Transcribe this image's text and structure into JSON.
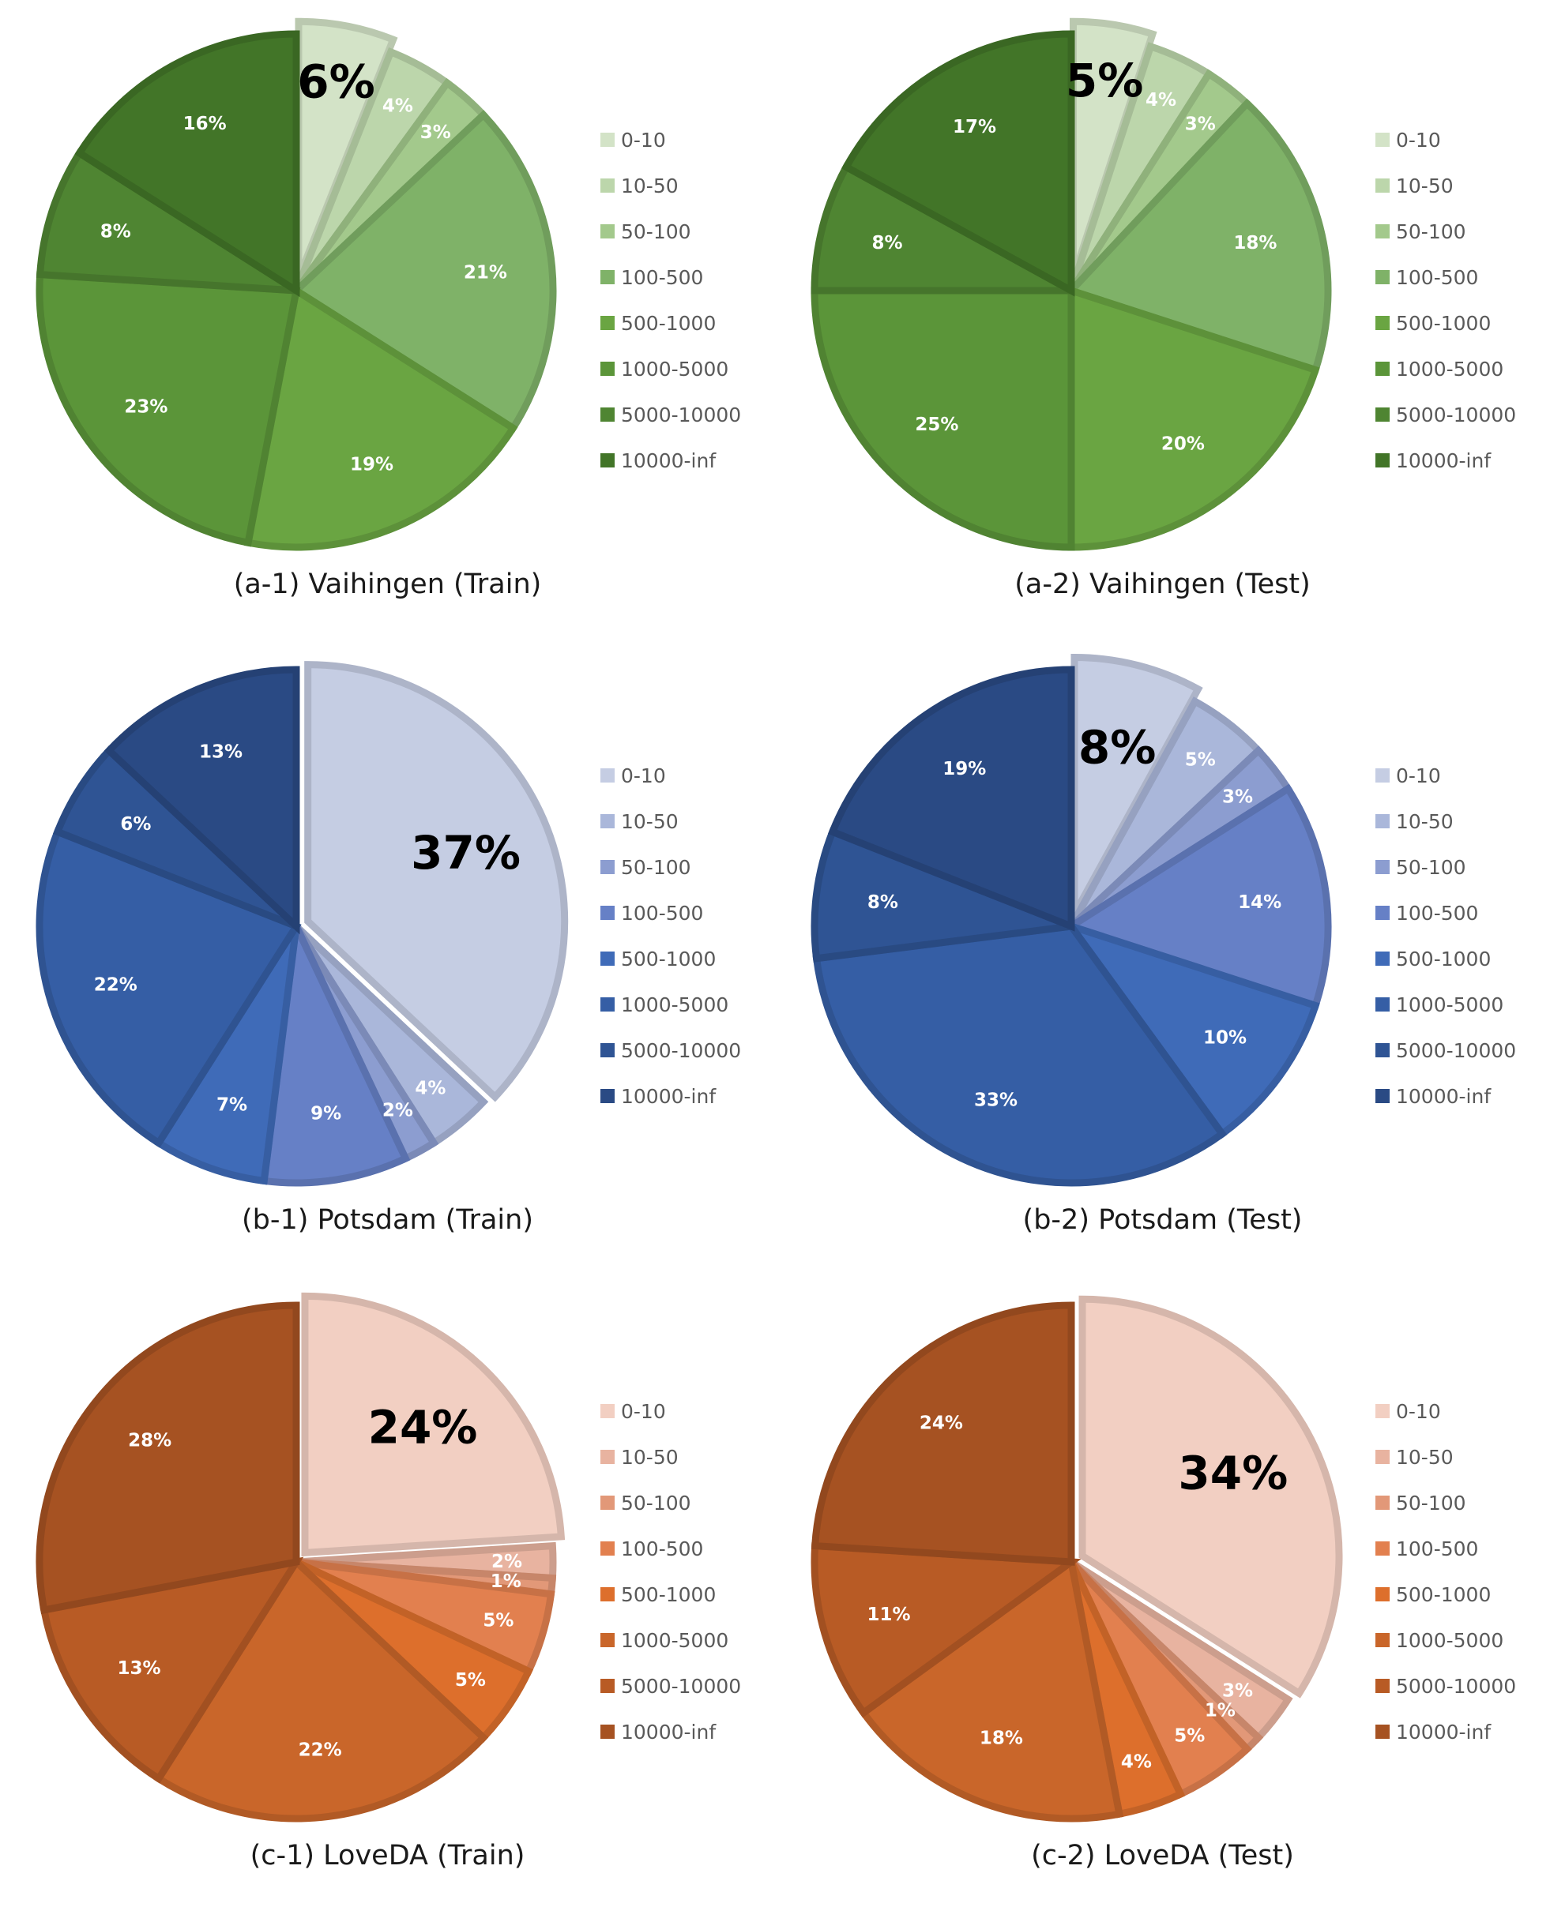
{
  "legend_categories": [
    "0-10",
    "10-50",
    "50-100",
    "100-500",
    "500-1000",
    "1000-5000",
    "5000-10000",
    "10000-inf"
  ],
  "chart_data": [
    {
      "type": "pie",
      "title": "(a-1) Vaihingen (Train)",
      "categories": [
        "0-10",
        "10-50",
        "50-100",
        "100-500",
        "500-1000",
        "1000-5000",
        "5000-10000",
        "10000-inf"
      ],
      "values": [
        6,
        4,
        3,
        21,
        19,
        23,
        8,
        16
      ],
      "labels": [
        "6%",
        "4%",
        "3%",
        "21%",
        "19%",
        "23%",
        "8%",
        "16%"
      ],
      "colors": [
        "#d3e3c7",
        "#bcd6ab",
        "#a3c98c",
        "#7fb268",
        "#6aa542",
        "#5b9539",
        "#4f8532",
        "#427528"
      ],
      "exploded_index": 0,
      "emphasized_index": 0,
      "legend_position": "right"
    },
    {
      "type": "pie",
      "title": "(a-2) Vaihingen (Test)",
      "categories": [
        "0-10",
        "10-50",
        "50-100",
        "100-500",
        "500-1000",
        "1000-5000",
        "5000-10000",
        "10000-inf"
      ],
      "values": [
        5,
        4,
        3,
        18,
        20,
        25,
        8,
        17
      ],
      "labels": [
        "5%",
        "4%",
        "3%",
        "18%",
        "20%",
        "25%",
        "8%",
        "17%"
      ],
      "colors": [
        "#d3e3c7",
        "#bcd6ab",
        "#a3c98c",
        "#7fb268",
        "#6aa542",
        "#5b9539",
        "#4f8532",
        "#427528"
      ],
      "exploded_index": 0,
      "emphasized_index": 0,
      "legend_position": "right"
    },
    {
      "type": "pie",
      "title": "(b-1) Potsdam (Train)",
      "categories": [
        "0-10",
        "10-50",
        "50-100",
        "100-500",
        "500-1000",
        "1000-5000",
        "5000-10000",
        "10000-inf"
      ],
      "values": [
        37,
        4,
        2,
        9,
        7,
        22,
        6,
        13
      ],
      "labels": [
        "37%",
        "4%",
        "2%",
        "9%",
        "7%",
        "22%",
        "6%",
        "13%"
      ],
      "colors": [
        "#c5cde3",
        "#aab7da",
        "#8c9dd0",
        "#6680c6",
        "#3f6bb8",
        "#355ea5",
        "#2f5494",
        "#2a4a84"
      ],
      "exploded_index": 0,
      "emphasized_index": 0,
      "legend_position": "right"
    },
    {
      "type": "pie",
      "title": "(b-2) Potsdam (Test)",
      "categories": [
        "0-10",
        "10-50",
        "50-100",
        "100-500",
        "500-1000",
        "1000-5000",
        "5000-10000",
        "10000-inf"
      ],
      "values": [
        8,
        5,
        3,
        14,
        10,
        33,
        8,
        19
      ],
      "labels": [
        "8%",
        "5%",
        "3%",
        "14%",
        "10%",
        "33%",
        "8%",
        "19%"
      ],
      "colors": [
        "#c5cde3",
        "#aab7da",
        "#8c9dd0",
        "#6680c6",
        "#3f6bb8",
        "#355ea5",
        "#2f5494",
        "#2a4a84"
      ],
      "exploded_index": 0,
      "emphasized_index": 0,
      "legend_position": "right"
    },
    {
      "type": "pie",
      "title": "(c-1) LoveDA (Train)",
      "categories": [
        "0-10",
        "10-50",
        "50-100",
        "100-500",
        "500-1000",
        "1000-5000",
        "5000-10000",
        "10000-inf"
      ],
      "values": [
        24,
        2,
        1,
        5,
        5,
        22,
        13,
        28
      ],
      "labels": [
        "24%",
        "2%",
        "1%",
        "5%",
        "5%",
        "22%",
        "13%",
        "28%"
      ],
      "colors": [
        "#f2cfc2",
        "#e8b3a0",
        "#e29878",
        "#e2804f",
        "#dd6f2c",
        "#c9662a",
        "#b85b25",
        "#a65222"
      ],
      "exploded_index": 0,
      "emphasized_index": 0,
      "legend_position": "right"
    },
    {
      "type": "pie",
      "title": "(c-2) LoveDA (Test)",
      "categories": [
        "0-10",
        "10-50",
        "50-100",
        "100-500",
        "500-1000",
        "1000-5000",
        "5000-10000",
        "10000-inf"
      ],
      "values": [
        34,
        3,
        1,
        5,
        4,
        18,
        11,
        24
      ],
      "labels": [
        "34%",
        "3%",
        "1%",
        "5%",
        "4%",
        "18%",
        "11%",
        "24%"
      ],
      "colors": [
        "#f2cfc2",
        "#e8b3a0",
        "#e29878",
        "#e2804f",
        "#dd6f2c",
        "#c9662a",
        "#b85b25",
        "#a65222"
      ],
      "exploded_index": 0,
      "emphasized_index": 0,
      "legend_position": "right"
    }
  ]
}
